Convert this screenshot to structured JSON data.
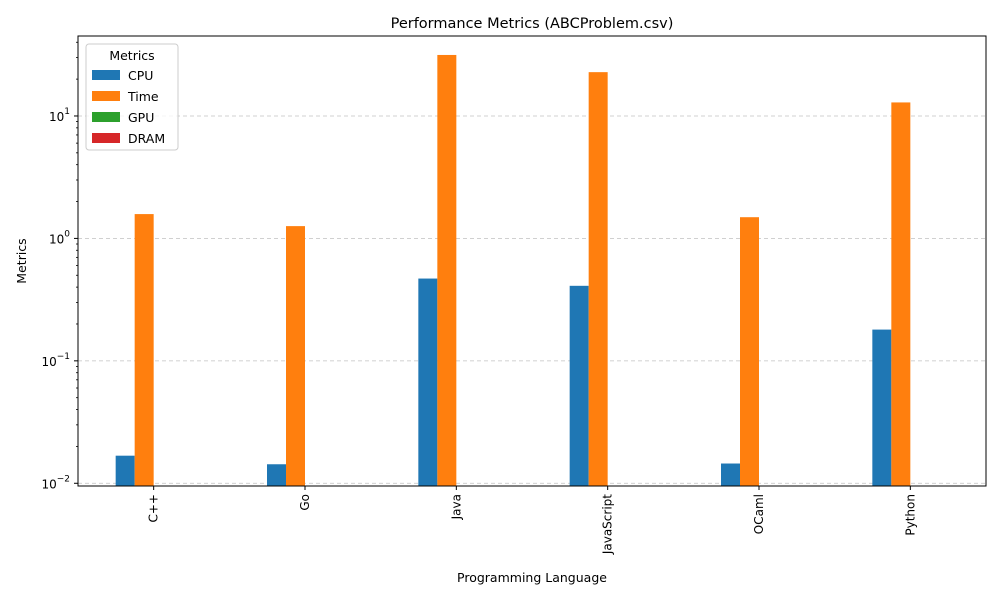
{
  "chart_data": {
    "type": "bar",
    "title": "Performance Metrics (ABCProblem.csv)",
    "xlabel": "Programming Language",
    "ylabel": "Metrics",
    "yscale": "log",
    "ylim": [
      0.0095,
      45
    ],
    "yticks": [
      {
        "value": 0.01,
        "base": "10",
        "exp": "−2"
      },
      {
        "value": 0.1,
        "base": "10",
        "exp": "−1"
      },
      {
        "value": 1,
        "base": "10",
        "exp": "0"
      },
      {
        "value": 10,
        "base": "10",
        "exp": "1"
      }
    ],
    "categories": [
      "C++",
      "Go",
      "Java",
      "JavaScript",
      "OCaml",
      "Python"
    ],
    "series": [
      {
        "name": "CPU",
        "color": "#1f77b4",
        "values": [
          0.0168,
          0.0143,
          0.47,
          0.41,
          0.0145,
          0.18
        ]
      },
      {
        "name": "Time",
        "color": "#ff7f0e",
        "values": [
          1.58,
          1.26,
          31.5,
          22.8,
          1.49,
          12.9
        ]
      },
      {
        "name": "GPU",
        "color": "#2ca02c",
        "values": [
          0,
          0,
          0,
          0,
          0,
          0
        ]
      },
      {
        "name": "DRAM",
        "color": "#d62728",
        "values": [
          0,
          0,
          0,
          0,
          0,
          0
        ]
      }
    ],
    "grid": {
      "y": true,
      "x": false,
      "style": "dashed"
    },
    "legend": {
      "title": "Metrics",
      "position": "top-left"
    }
  }
}
